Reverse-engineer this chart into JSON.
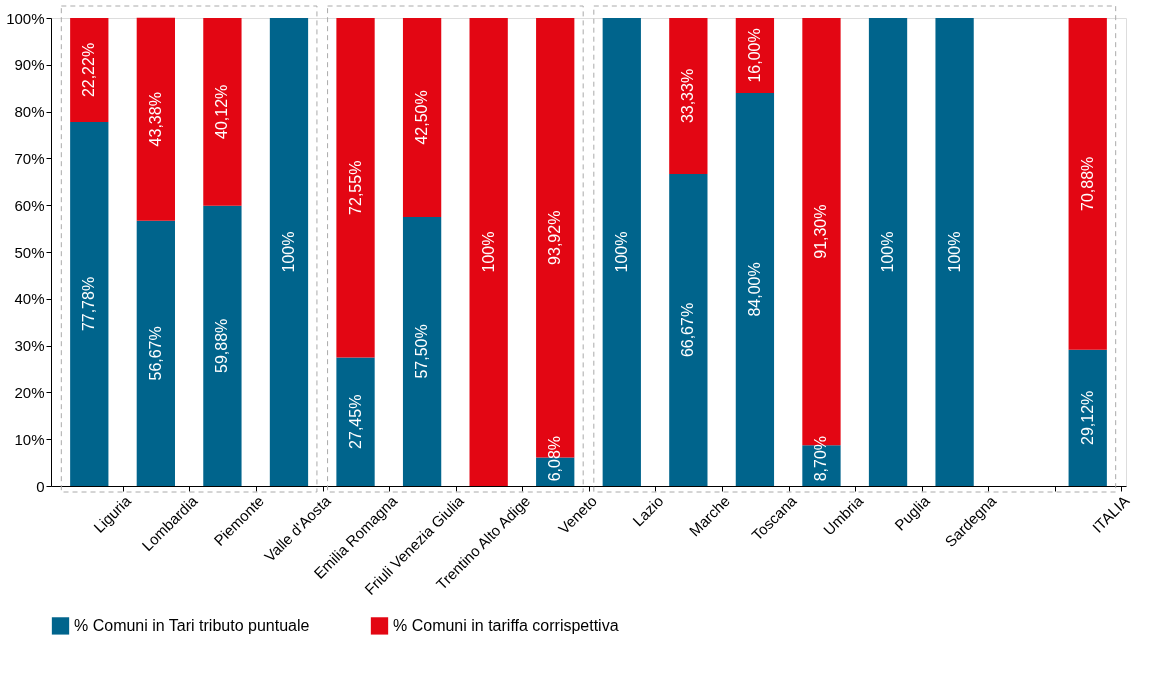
{
  "chart_data": {
    "type": "bar",
    "stacked": true,
    "categories": [
      "Liguria",
      "Lombardia",
      "Piemonte",
      "Valle d'Aosta",
      "Emilia Romagna",
      "Friuli Venezia Giulia",
      "Trentino Alto Adige",
      "Veneto",
      "Lazio",
      "Marche",
      "Toscana",
      "Umbria",
      "Puglia",
      "Sardegna",
      null,
      "ITALIA"
    ],
    "series": [
      {
        "name": "% Comuni in Tari tributo puntuale",
        "color": "#00648c",
        "values": [
          77.78,
          56.67,
          59.88,
          100,
          27.45,
          57.5,
          0,
          6.08,
          100,
          66.67,
          84.0,
          8.7,
          100,
          100,
          null,
          29.12
        ],
        "value_labels": [
          "77,78%",
          "56,67%",
          "59,88%",
          "100%",
          "27,45%",
          "57,50%",
          null,
          "6,08%",
          "100%",
          "66,67%",
          "84,00%",
          "8,70%",
          "100%",
          "100%",
          null,
          "29,12%"
        ]
      },
      {
        "name": "% Comuni in tariffa corrispettiva",
        "color": "#e30613",
        "values": [
          22.22,
          43.38,
          40.12,
          0,
          72.55,
          42.5,
          100,
          93.92,
          0,
          33.33,
          16.0,
          91.3,
          0,
          0,
          null,
          70.88
        ],
        "value_labels": [
          "22,22%",
          "43,38%",
          "40,12%",
          null,
          "72,55%",
          "42,50%",
          "100%",
          "93,92%",
          null,
          "33,33%",
          "16,00%",
          "91,30%",
          null,
          null,
          null,
          "70,88%"
        ]
      }
    ],
    "ylim": [
      0,
      100
    ],
    "yticks": [
      0,
      {
        "value": 10,
        "label": "10%"
      },
      {
        "value": 20,
        "label": "20%"
      },
      {
        "value": 30,
        "label": "30%"
      },
      {
        "value": 40,
        "label": "40%"
      },
      {
        "value": 50,
        "label": "50%"
      },
      {
        "value": 60,
        "label": "60%"
      },
      {
        "value": 70,
        "label": "70%"
      },
      {
        "value": 80,
        "label": "80%"
      },
      {
        "value": 90,
        "label": "90%"
      },
      {
        "value": 100,
        "label": "100%"
      }
    ],
    "grid": false,
    "legend": "bottom"
  }
}
